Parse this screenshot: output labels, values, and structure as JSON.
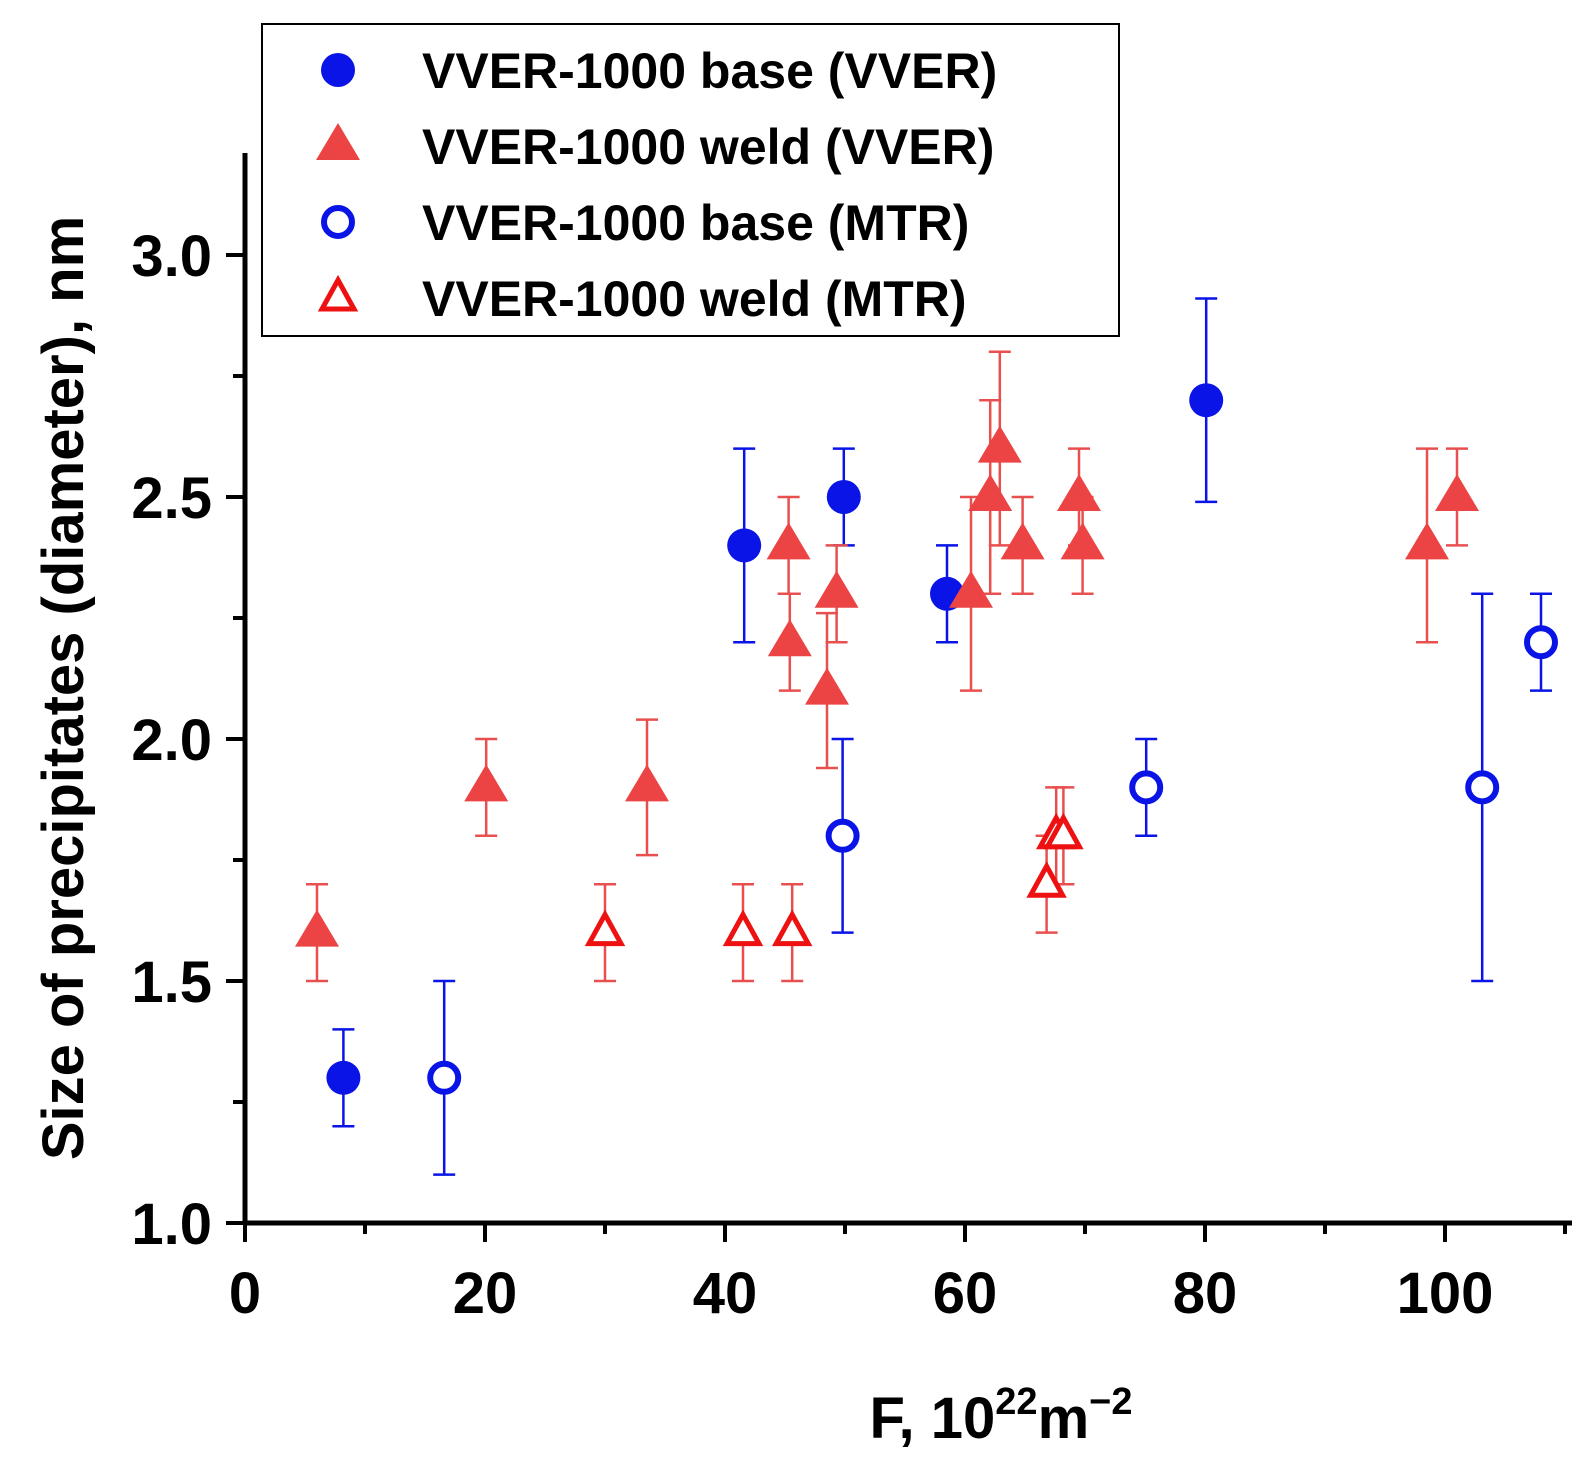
{
  "chart_data": {
    "type": "scatter",
    "title": "",
    "xlabel": {
      "base": "F, 10",
      "sup1": "22",
      "mid": "m",
      "sup2": "−2"
    },
    "ylabel": "Size of precipitates (diameter), nm",
    "xlim": [
      0,
      110
    ],
    "ylim": [
      1.0,
      3.2
    ],
    "x_ticks": [
      0,
      20,
      40,
      60,
      80,
      100
    ],
    "x_tick_labels": [
      "0",
      "20",
      "40",
      "60",
      "80",
      "100"
    ],
    "x_minor_ticks": [
      10,
      30,
      50,
      70,
      90,
      110
    ],
    "y_ticks": [
      1.0,
      1.5,
      2.0,
      2.5,
      3.0
    ],
    "y_tick_labels": [
      "1.0",
      "1.5",
      "2.0",
      "2.5",
      "3.0"
    ],
    "y_minor_ticks": [
      1.25,
      1.75,
      2.25,
      2.75
    ],
    "grid": false,
    "legend_position": "top",
    "series": [
      {
        "name": "VVER-1000 base (VVER)",
        "marker": "circle",
        "filled": true,
        "color": "#0a14e6",
        "points": [
          {
            "x": 8.2,
            "y": 1.3,
            "err_lo": 0.1,
            "err_hi": 0.1
          },
          {
            "x": 41.6,
            "y": 2.4,
            "err_lo": 0.2,
            "err_hi": 0.2
          },
          {
            "x": 49.9,
            "y": 2.5,
            "err_lo": 0.1,
            "err_hi": 0.1
          },
          {
            "x": 58.5,
            "y": 2.3,
            "err_lo": 0.1,
            "err_hi": 0.1
          },
          {
            "x": 80.1,
            "y": 2.7,
            "err_lo": 0.21,
            "err_hi": 0.21
          }
        ]
      },
      {
        "name": "VVER-1000 weld (VVER)",
        "marker": "triangle",
        "filled": true,
        "color": "#ec4444",
        "points": [
          {
            "x": 6.0,
            "y": 1.6,
            "err_lo": 0.1,
            "err_hi": 0.1
          },
          {
            "x": 20.1,
            "y": 1.9,
            "err_lo": 0.1,
            "err_hi": 0.1
          },
          {
            "x": 33.5,
            "y": 1.9,
            "err_lo": 0.14,
            "err_hi": 0.14
          },
          {
            "x": 45.3,
            "y": 2.4,
            "err_lo": 0.1,
            "err_hi": 0.1
          },
          {
            "x": 45.4,
            "y": 2.2,
            "err_lo": 0.1,
            "err_hi": 0.1
          },
          {
            "x": 48.5,
            "y": 2.1,
            "err_lo": 0.16,
            "err_hi": 0.16
          },
          {
            "x": 49.3,
            "y": 2.3,
            "err_lo": 0.1,
            "err_hi": 0.1
          },
          {
            "x": 60.5,
            "y": 2.3,
            "err_lo": 0.2,
            "err_hi": 0.2
          },
          {
            "x": 62.1,
            "y": 2.5,
            "err_lo": 0.2,
            "err_hi": 0.2
          },
          {
            "x": 62.9,
            "y": 2.6,
            "err_lo": 0.2,
            "err_hi": 0.2
          },
          {
            "x": 64.8,
            "y": 2.4,
            "err_lo": 0.1,
            "err_hi": 0.1
          },
          {
            "x": 69.5,
            "y": 2.5,
            "err_lo": 0.1,
            "err_hi": 0.1
          },
          {
            "x": 69.8,
            "y": 2.4,
            "err_lo": 0.1,
            "err_hi": 0.1
          },
          {
            "x": 98.5,
            "y": 2.4,
            "err_lo": 0.2,
            "err_hi": 0.2
          },
          {
            "x": 101.0,
            "y": 2.5,
            "err_lo": 0.1,
            "err_hi": 0.1
          }
        ]
      },
      {
        "name": "VVER-1000 base (MTR)",
        "marker": "circle",
        "filled": false,
        "color": "#0a14e6",
        "points": [
          {
            "x": 16.6,
            "y": 1.3,
            "err_lo": 0.2,
            "err_hi": 0.2
          },
          {
            "x": 49.8,
            "y": 1.8,
            "err_lo": 0.2,
            "err_hi": 0.2
          },
          {
            "x": 75.1,
            "y": 1.9,
            "err_lo": 0.1,
            "err_hi": 0.1
          },
          {
            "x": 103.1,
            "y": 1.9,
            "err_lo": 0.4,
            "err_hi": 0.4
          },
          {
            "x": 108.0,
            "y": 2.2,
            "err_lo": 0.1,
            "err_hi": 0.1
          }
        ]
      },
      {
        "name": "VVER-1000 weld (MTR)",
        "marker": "triangle",
        "filled": false,
        "color": "#ee1111",
        "points": [
          {
            "x": 30.0,
            "y": 1.6,
            "err_lo": 0.1,
            "err_hi": 0.1
          },
          {
            "x": 41.5,
            "y": 1.6,
            "err_lo": 0.1,
            "err_hi": 0.1
          },
          {
            "x": 45.6,
            "y": 1.6,
            "err_lo": 0.1,
            "err_hi": 0.1
          },
          {
            "x": 66.8,
            "y": 1.7,
            "err_lo": 0.1,
            "err_hi": 0.1
          },
          {
            "x": 67.6,
            "y": 1.8,
            "err_lo": 0.1,
            "err_hi": 0.1
          },
          {
            "x": 68.2,
            "y": 1.8,
            "err_lo": 0.1,
            "err_hi": 0.1
          }
        ]
      }
    ]
  }
}
